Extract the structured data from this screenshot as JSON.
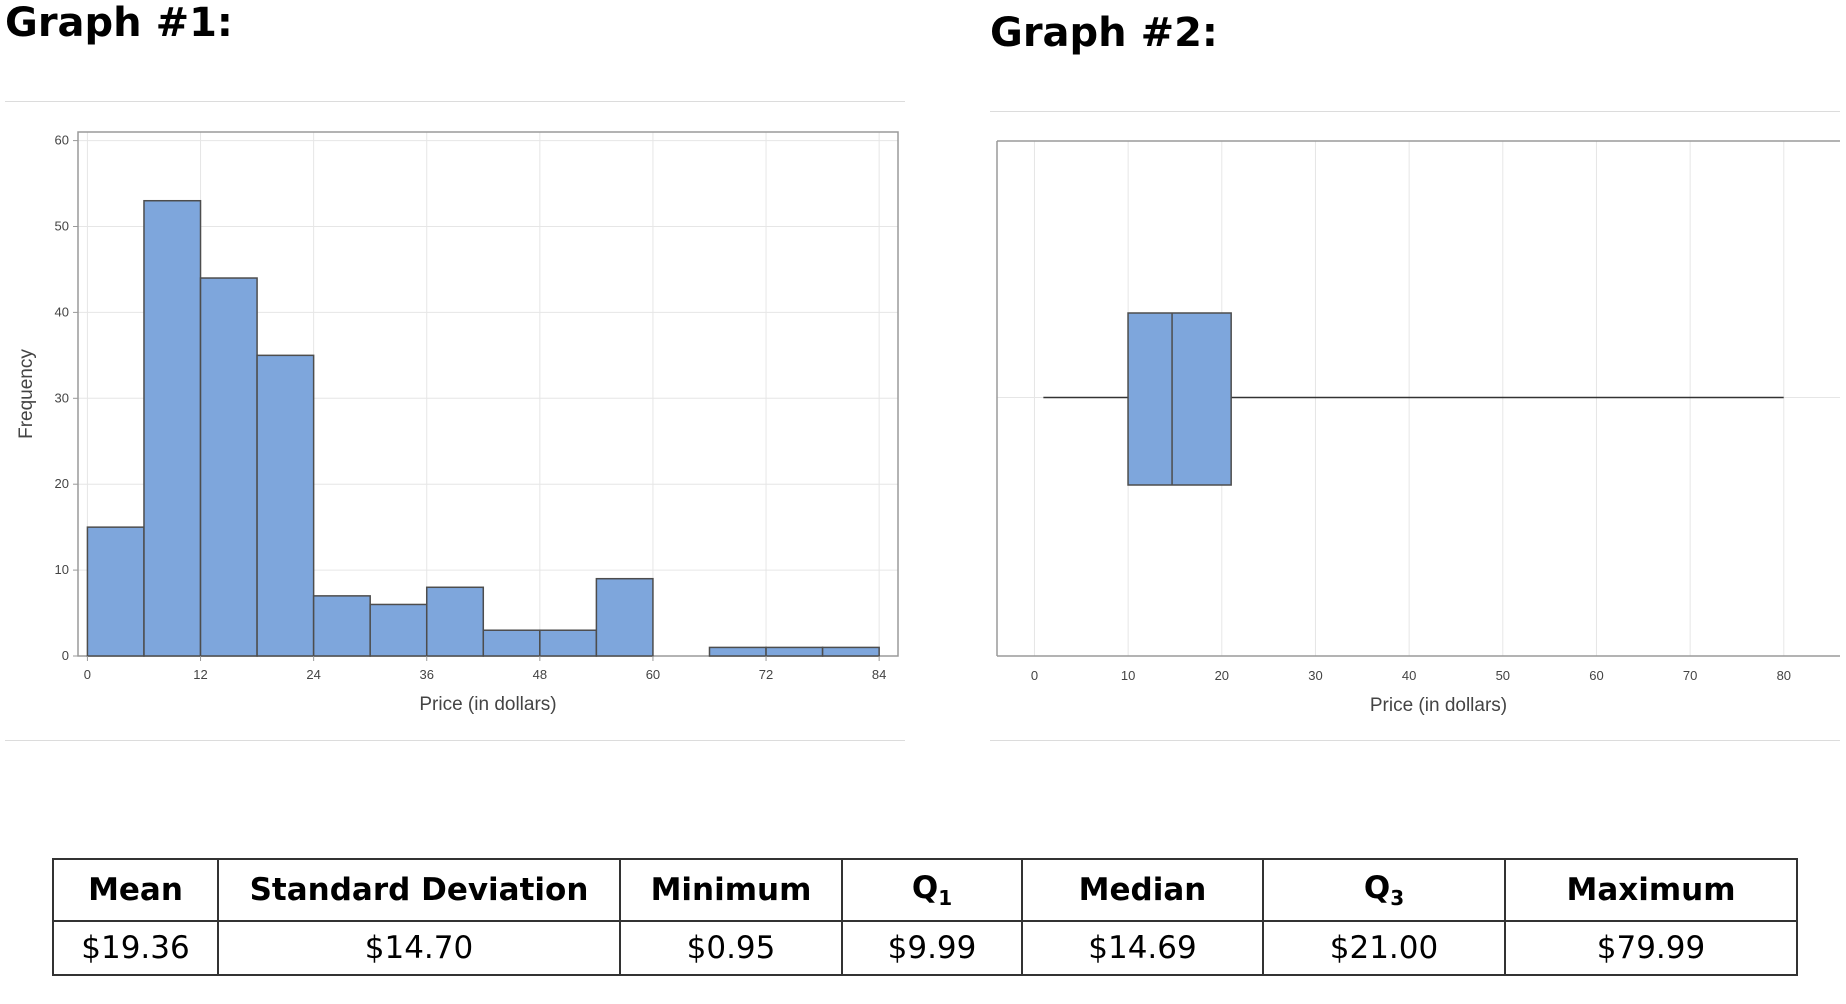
{
  "graph1_title": "Graph #1:",
  "graph2_title": "Graph #2:",
  "colors": {
    "bar_fill": "#7ea6dc",
    "bar_stroke": "#4d4d4d",
    "grid": "#e6e6e6",
    "frame": "#9a9a9a"
  },
  "chart_data": [
    {
      "type": "histogram",
      "xlabel": "Price (in dollars)",
      "ylabel": "Frequency",
      "bin_width": 6,
      "bins": [
        {
          "start": 0,
          "end": 6,
          "count": 15
        },
        {
          "start": 6,
          "end": 12,
          "count": 53
        },
        {
          "start": 12,
          "end": 18,
          "count": 44
        },
        {
          "start": 18,
          "end": 24,
          "count": 35
        },
        {
          "start": 24,
          "end": 30,
          "count": 7
        },
        {
          "start": 30,
          "end": 36,
          "count": 6
        },
        {
          "start": 36,
          "end": 42,
          "count": 8
        },
        {
          "start": 42,
          "end": 48,
          "count": 3
        },
        {
          "start": 48,
          "end": 54,
          "count": 3
        },
        {
          "start": 54,
          "end": 60,
          "count": 9
        },
        {
          "start": 60,
          "end": 66,
          "count": 0
        },
        {
          "start": 66,
          "end": 72,
          "count": 1
        },
        {
          "start": 72,
          "end": 78,
          "count": 1
        },
        {
          "start": 78,
          "end": 84,
          "count": 1
        }
      ],
      "xticks": [
        0,
        12,
        24,
        36,
        48,
        60,
        72,
        84
      ],
      "yticks": [
        0,
        10,
        20,
        30,
        40,
        50,
        60
      ],
      "xlim": [
        -1,
        86
      ],
      "ylim": [
        0,
        61
      ],
      "grid": true
    },
    {
      "type": "boxplot",
      "xlabel": "Price (in dollars)",
      "min": 0.95,
      "q1": 9.99,
      "median": 14.69,
      "q3": 21.0,
      "max": 79.99,
      "xticks": [
        0,
        10,
        20,
        30,
        40,
        50,
        60,
        70,
        80
      ],
      "xlim": [
        -4,
        86
      ],
      "grid": true
    }
  ],
  "table": {
    "headers": [
      "Mean",
      "Standard Deviation",
      "Minimum",
      "Q",
      "Median",
      "Q",
      "Maximum"
    ],
    "header_subscripts": [
      "",
      "",
      "",
      "1",
      "",
      "3",
      ""
    ],
    "values": [
      "$19.36",
      "$14.70",
      "$0.95",
      "$9.99",
      "$14.69",
      "$21.00",
      "$79.99"
    ]
  }
}
